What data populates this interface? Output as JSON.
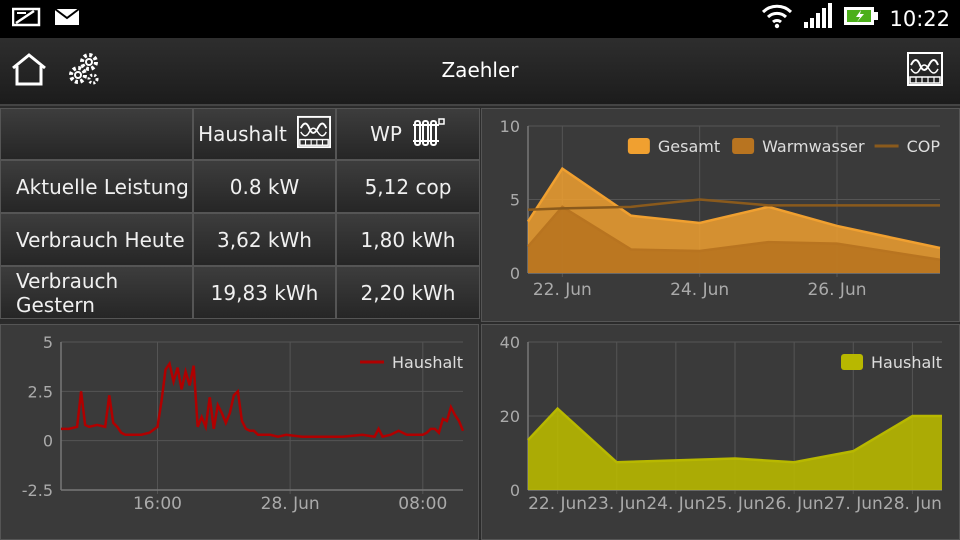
{
  "status_bar": {
    "time": "10:22",
    "icons": [
      "notification-icon",
      "mail-icon",
      "wifi-icon",
      "signal-icon",
      "battery-icon"
    ]
  },
  "action_bar": {
    "title": "Zaehler",
    "icons": [
      "home-icon",
      "settings-icon",
      "meter-icon"
    ]
  },
  "table": {
    "columns": [
      "Haushalt",
      "WP"
    ],
    "rows": [
      {
        "label": "Aktuelle Leistung",
        "haushalt": "0.8 kW",
        "wp": "5,12 cop"
      },
      {
        "label": "Verbrauch Heute",
        "haushalt": "3,62 kWh",
        "wp": "1,80 kWh"
      },
      {
        "label": "Verbrauch Gestern",
        "haushalt": "19,83 kWh",
        "wp": "2,20 kWh"
      }
    ]
  },
  "colors": {
    "gesamt": "#f0a030",
    "warmwasser": "#b87420",
    "cop": "#8a5a1c",
    "haushalt_line": "#b00000",
    "haushalt_area": "#b8b800"
  },
  "chart_data": [
    {
      "type": "area",
      "ylim": [
        0,
        10
      ],
      "yticks": [
        "0",
        "5",
        "10"
      ],
      "xlim": [
        21.5,
        27.5
      ],
      "xticks": [
        {
          "value": 22,
          "label": "22. Jun"
        },
        {
          "value": 24,
          "label": "24. Jun"
        },
        {
          "value": 26,
          "label": "26. Jun"
        }
      ],
      "x": [
        21.5,
        22,
        23,
        24,
        25,
        26,
        27.5
      ],
      "series": [
        {
          "name": "Gesamt",
          "style": "area",
          "values": [
            3.5,
            7.1,
            3.9,
            3.4,
            4.5,
            3.2,
            1.7
          ]
        },
        {
          "name": "Warmwasser",
          "style": "area",
          "values": [
            1.8,
            4.5,
            1.6,
            1.5,
            2.1,
            2.0,
            0.9
          ]
        },
        {
          "name": "COP",
          "style": "line",
          "values": [
            4.3,
            4.4,
            4.5,
            5.0,
            4.6,
            4.6,
            4.6
          ]
        }
      ],
      "legend": "top-right"
    },
    {
      "type": "line",
      "ylim": [
        -2.5,
        5
      ],
      "yticks": [
        "-2.5",
        "0",
        "2.5",
        "5"
      ],
      "xlim": [
        0,
        100
      ],
      "xticks": [
        {
          "value": 24,
          "label": "16:00"
        },
        {
          "value": 57,
          "label": "28. Jun"
        },
        {
          "value": 90,
          "label": "08:00"
        }
      ],
      "x": [
        0,
        2,
        4,
        5,
        6,
        7,
        9,
        11,
        12,
        13,
        14,
        15,
        16,
        17,
        18,
        20,
        22,
        24,
        25,
        26,
        27,
        28,
        29,
        30,
        31,
        32,
        33,
        34,
        35,
        36,
        37,
        38,
        39,
        40,
        41,
        42,
        43,
        44,
        45,
        46,
        47,
        48,
        49,
        50,
        52,
        54,
        56,
        60,
        65,
        70,
        75,
        78,
        79,
        80,
        82,
        84,
        86,
        88,
        90,
        91,
        92,
        93,
        94,
        95,
        96,
        97,
        98,
        99,
        100
      ],
      "series": [
        {
          "name": "Haushalt",
          "values": [
            0.6,
            0.6,
            0.7,
            2.5,
            0.8,
            0.7,
            0.8,
            0.7,
            2.3,
            0.9,
            0.7,
            0.4,
            0.3,
            0.3,
            0.3,
            0.3,
            0.4,
            0.7,
            2.0,
            3.6,
            3.9,
            3.0,
            3.7,
            2.6,
            3.5,
            2.8,
            3.8,
            0.7,
            1.2,
            0.7,
            2.2,
            0.6,
            1.8,
            1.4,
            0.9,
            1.4,
            2.3,
            2.5,
            1.0,
            0.6,
            0.5,
            0.5,
            0.3,
            0.3,
            0.3,
            0.2,
            0.3,
            0.2,
            0.2,
            0.2,
            0.3,
            0.2,
            0.6,
            0.2,
            0.3,
            0.5,
            0.3,
            0.3,
            0.3,
            0.4,
            0.6,
            0.6,
            0.4,
            1.1,
            1.0,
            1.7,
            1.3,
            1.0,
            0.5
          ]
        }
      ],
      "legend": "top-right"
    },
    {
      "type": "area",
      "ylim": [
        0,
        40
      ],
      "yticks": [
        "0",
        "20",
        "40"
      ],
      "xlim": [
        21.5,
        28.5
      ],
      "xticks": [
        {
          "value": 22,
          "label": "22. Jun"
        },
        {
          "value": 23,
          "label": "23. Jun"
        },
        {
          "value": 24,
          "label": "24. Jun"
        },
        {
          "value": 25,
          "label": "25. Jun"
        },
        {
          "value": 26,
          "label": "26. Jun"
        },
        {
          "value": 27,
          "label": "27. Jun"
        },
        {
          "value": 28,
          "label": "28. Jun"
        }
      ],
      "x": [
        21.5,
        22,
        23,
        24,
        25,
        26,
        27,
        28,
        28.5
      ],
      "series": [
        {
          "name": "Haushalt",
          "values": [
            13.5,
            22.0,
            7.5,
            8.0,
            8.5,
            7.5,
            10.5,
            20.0,
            20.0
          ]
        }
      ],
      "legend": "top-right"
    }
  ]
}
